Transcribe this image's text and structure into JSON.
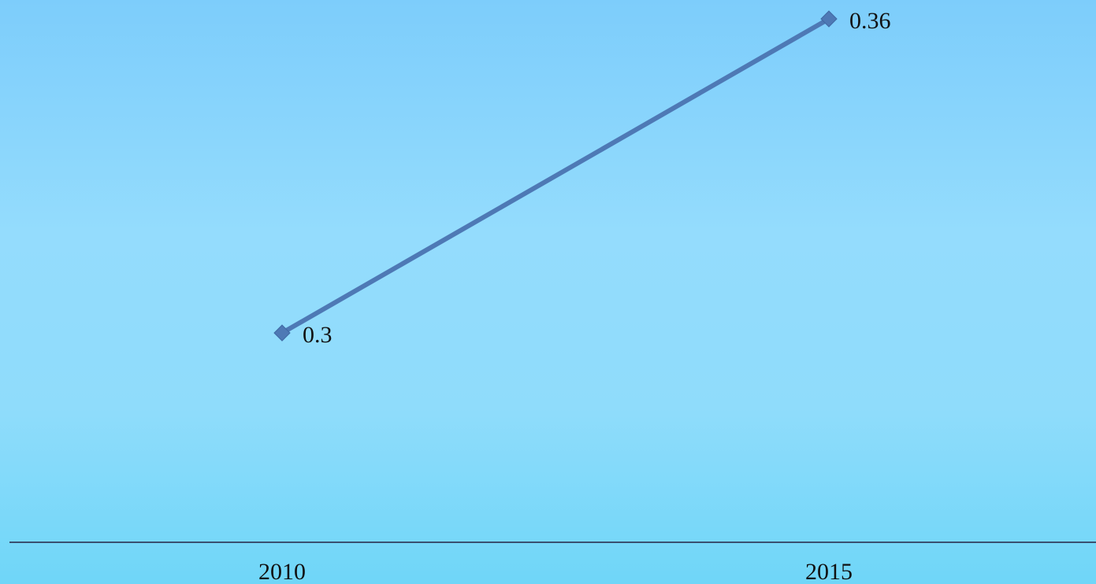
{
  "chart_data": {
    "type": "line",
    "categories": [
      "2010",
      "2015"
    ],
    "series": [
      {
        "values": [
          0.3,
          0.36
        ],
        "data_labels": [
          "0.3",
          "0.36"
        ],
        "color": "#4e79b5",
        "marker": "diamond"
      }
    ],
    "title": "",
    "xlabel": "",
    "ylabel": "",
    "ylim": [
      0.26,
      0.36
    ],
    "grid": false,
    "legend": "none",
    "axis_color": "#3a5070",
    "background_top": "#7dcdfb",
    "background_bottom": "#6fd6f8"
  }
}
